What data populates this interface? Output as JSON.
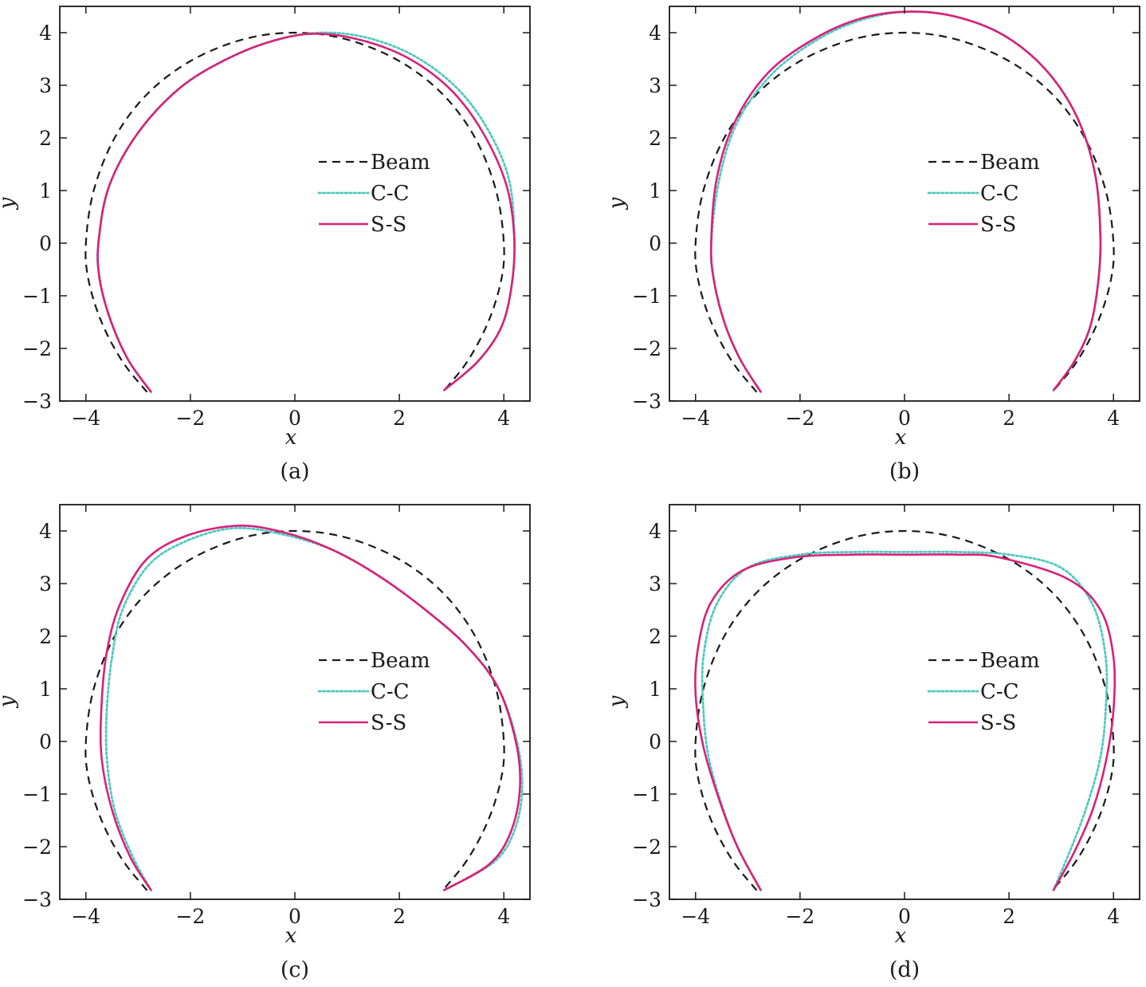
{
  "chart_data": [
    {
      "type": "line",
      "caption": "(a)",
      "xlabel": "x",
      "ylabel": "y",
      "xlim": [
        -4.5,
        4.5
      ],
      "ylim": [
        -3,
        4.5
      ],
      "xticks": [
        -4,
        -2,
        0,
        2,
        4
      ],
      "yticks": [
        -3,
        -2,
        -1,
        0,
        1,
        2,
        3,
        4
      ],
      "legend_position": "center-right",
      "series": [
        {
          "name": "Beam",
          "style": "dashed",
          "color": "#1a1a1a",
          "x": [
            -2.83,
            -3.3,
            -3.7,
            -3.95,
            -4.0,
            -3.85,
            -3.45,
            -2.83,
            -2.0,
            -1.0,
            0.0,
            1.0,
            2.0,
            2.83,
            3.45,
            3.85,
            4.0,
            3.95,
            3.7,
            3.3,
            2.83
          ],
          "y": [
            -2.83,
            -2.25,
            -1.5,
            -0.7,
            0.0,
            1.0,
            2.0,
            2.83,
            3.46,
            3.87,
            4.0,
            3.87,
            3.46,
            2.83,
            2.0,
            1.0,
            0.0,
            -0.7,
            -1.5,
            -2.25,
            -2.83
          ]
        },
        {
          "name": "C-C",
          "style": "dotted",
          "color": "#4ec9c0",
          "x": [
            -2.75,
            -3.2,
            -3.55,
            -3.75,
            -3.75,
            -3.55,
            -3.0,
            -2.2,
            -1.3,
            -0.4,
            0.5,
            1.4,
            2.3,
            3.1,
            3.7,
            4.1,
            4.2,
            4.15,
            3.95,
            3.5,
            2.85
          ],
          "y": [
            -2.83,
            -2.2,
            -1.4,
            -0.6,
            0.1,
            1.1,
            2.1,
            2.95,
            3.5,
            3.85,
            4.0,
            3.9,
            3.55,
            2.95,
            2.15,
            1.2,
            0.1,
            -0.8,
            -1.6,
            -2.25,
            -2.8
          ]
        },
        {
          "name": "S-S",
          "style": "solid",
          "color": "#d9207a",
          "x": [
            -2.75,
            -3.2,
            -3.55,
            -3.75,
            -3.75,
            -3.55,
            -3.0,
            -2.2,
            -1.3,
            -0.4,
            0.4,
            1.3,
            2.2,
            3.0,
            3.6,
            4.05,
            4.2,
            4.15,
            3.95,
            3.5,
            2.85
          ],
          "y": [
            -2.83,
            -2.2,
            -1.4,
            -0.6,
            0.1,
            1.1,
            2.1,
            2.95,
            3.5,
            3.85,
            3.98,
            3.85,
            3.5,
            2.9,
            2.1,
            1.1,
            0.1,
            -0.8,
            -1.6,
            -2.25,
            -2.8
          ]
        }
      ]
    },
    {
      "type": "line",
      "caption": "(b)",
      "xlabel": "x",
      "ylabel": "y",
      "xlim": [
        -4.5,
        4.5
      ],
      "ylim": [
        -3,
        4.5
      ],
      "xticks": [
        -4,
        -2,
        0,
        2,
        4
      ],
      "yticks": [
        -3,
        -2,
        -1,
        0,
        1,
        2,
        3,
        4
      ],
      "legend_position": "center-right",
      "series": [
        {
          "name": "Beam",
          "style": "dashed",
          "color": "#1a1a1a",
          "x": [
            -2.83,
            -3.3,
            -3.7,
            -3.95,
            -4.0,
            -3.85,
            -3.45,
            -2.83,
            -2.0,
            -1.0,
            0.0,
            1.0,
            2.0,
            2.83,
            3.45,
            3.85,
            4.0,
            3.95,
            3.7,
            3.3,
            2.83
          ],
          "y": [
            -2.83,
            -2.25,
            -1.5,
            -0.7,
            0.0,
            1.0,
            2.0,
            2.83,
            3.46,
            3.87,
            4.0,
            3.87,
            3.46,
            2.83,
            2.0,
            1.0,
            0.0,
            -0.7,
            -1.5,
            -2.25,
            -2.83
          ]
        },
        {
          "name": "C-C",
          "style": "dotted",
          "color": "#4ec9c0",
          "x": [
            -2.75,
            -3.15,
            -3.45,
            -3.65,
            -3.7,
            -3.55,
            -3.2,
            -2.55,
            -1.7,
            -0.8,
            0.1,
            1.0,
            1.9,
            2.7,
            3.3,
            3.65,
            3.75,
            3.7,
            3.55,
            3.25,
            2.85
          ],
          "y": [
            -2.83,
            -2.2,
            -1.5,
            -0.7,
            0.0,
            1.2,
            2.3,
            3.2,
            3.85,
            4.25,
            4.4,
            4.3,
            3.95,
            3.3,
            2.4,
            1.3,
            0.1,
            -0.8,
            -1.6,
            -2.25,
            -2.8
          ]
        },
        {
          "name": "S-S",
          "style": "solid",
          "color": "#d9207a",
          "x": [
            -2.75,
            -3.15,
            -3.45,
            -3.65,
            -3.7,
            -3.6,
            -3.25,
            -2.6,
            -1.7,
            -0.8,
            0.1,
            1.0,
            1.9,
            2.7,
            3.3,
            3.65,
            3.75,
            3.7,
            3.55,
            3.25,
            2.85
          ],
          "y": [
            -2.83,
            -2.2,
            -1.5,
            -0.7,
            0.0,
            1.2,
            2.3,
            3.25,
            3.9,
            4.28,
            4.4,
            4.3,
            3.95,
            3.3,
            2.4,
            1.3,
            0.1,
            -0.8,
            -1.6,
            -2.25,
            -2.8
          ]
        }
      ]
    },
    {
      "type": "line",
      "caption": "(c)",
      "xlabel": "x",
      "ylabel": "y",
      "xlim": [
        -4.5,
        4.5
      ],
      "ylim": [
        -3,
        4.5
      ],
      "xticks": [
        -4,
        -2,
        0,
        2,
        4
      ],
      "yticks": [
        -3,
        -2,
        -1,
        0,
        1,
        2,
        3,
        4
      ],
      "legend_position": "center-right",
      "series": [
        {
          "name": "Beam",
          "style": "dashed",
          "color": "#1a1a1a",
          "x": [
            -2.83,
            -3.3,
            -3.7,
            -3.95,
            -4.0,
            -3.85,
            -3.45,
            -2.83,
            -2.0,
            -1.0,
            0.0,
            1.0,
            2.0,
            2.83,
            3.45,
            3.85,
            4.0,
            3.95,
            3.7,
            3.3,
            2.83
          ],
          "y": [
            -2.83,
            -2.25,
            -1.5,
            -0.7,
            0.0,
            1.0,
            2.0,
            2.83,
            3.46,
            3.87,
            4.0,
            3.87,
            3.46,
            2.83,
            2.0,
            1.0,
            0.0,
            -0.7,
            -1.5,
            -2.25,
            -2.83
          ]
        },
        {
          "name": "C-C",
          "style": "dotted",
          "color": "#4ec9c0",
          "x": [
            -2.75,
            -3.1,
            -3.45,
            -3.6,
            -3.6,
            -3.5,
            -3.3,
            -2.8,
            -2.1,
            -1.2,
            -0.3,
            0.7,
            1.6,
            2.5,
            3.3,
            3.9,
            4.25,
            4.35,
            4.2,
            3.8,
            2.85
          ],
          "y": [
            -2.83,
            -2.2,
            -1.3,
            -0.3,
            0.6,
            1.6,
            2.5,
            3.35,
            3.8,
            4.05,
            3.95,
            3.65,
            3.15,
            2.5,
            1.8,
            1.0,
            0.0,
            -0.9,
            -1.7,
            -2.3,
            -2.83
          ]
        },
        {
          "name": "S-S",
          "style": "solid",
          "color": "#d9207a",
          "x": [
            -2.75,
            -3.15,
            -3.5,
            -3.7,
            -3.7,
            -3.6,
            -3.35,
            -2.85,
            -2.1,
            -1.1,
            -0.2,
            0.7,
            1.6,
            2.5,
            3.3,
            3.9,
            4.25,
            4.3,
            4.1,
            3.7,
            2.85
          ],
          "y": [
            -2.83,
            -2.2,
            -1.3,
            -0.3,
            0.7,
            1.7,
            2.6,
            3.45,
            3.9,
            4.1,
            3.97,
            3.65,
            3.15,
            2.5,
            1.8,
            1.0,
            -0.1,
            -1.0,
            -1.8,
            -2.35,
            -2.83
          ]
        }
      ]
    },
    {
      "type": "line",
      "caption": "(d)",
      "xlabel": "x",
      "ylabel": "y",
      "xlim": [
        -4.5,
        4.5
      ],
      "ylim": [
        -3,
        4.5
      ],
      "xticks": [
        -4,
        -2,
        0,
        2,
        4
      ],
      "yticks": [
        -3,
        -2,
        -1,
        0,
        1,
        2,
        3,
        4
      ],
      "legend_position": "center-right",
      "series": [
        {
          "name": "Beam",
          "style": "dashed",
          "color": "#1a1a1a",
          "x": [
            -2.83,
            -3.3,
            -3.7,
            -3.95,
            -4.0,
            -3.85,
            -3.45,
            -2.83,
            -2.0,
            -1.0,
            0.0,
            1.0,
            2.0,
            2.83,
            3.45,
            3.85,
            4.0,
            3.95,
            3.7,
            3.3,
            2.83
          ],
          "y": [
            -2.83,
            -2.25,
            -1.5,
            -0.7,
            0.0,
            1.0,
            2.0,
            2.83,
            3.46,
            3.87,
            4.0,
            3.87,
            3.46,
            2.83,
            2.0,
            1.0,
            0.0,
            -0.7,
            -1.5,
            -2.25,
            -2.83
          ]
        },
        {
          "name": "C-C",
          "style": "dotted",
          "color": "#4ec9c0",
          "x": [
            -2.75,
            -3.2,
            -3.5,
            -3.75,
            -3.85,
            -3.85,
            -3.6,
            -3.0,
            -2.0,
            -1.0,
            0.0,
            1.0,
            2.0,
            3.0,
            3.6,
            3.85,
            3.85,
            3.75,
            3.5,
            3.2,
            2.85
          ],
          "y": [
            -2.83,
            -2.0,
            -1.2,
            -0.3,
            0.6,
            1.6,
            2.6,
            3.3,
            3.55,
            3.6,
            3.6,
            3.6,
            3.55,
            3.3,
            2.6,
            1.6,
            0.6,
            -0.3,
            -1.2,
            -2.0,
            -2.83
          ]
        },
        {
          "name": "S-S",
          "style": "solid",
          "color": "#d9207a",
          "x": [
            -2.75,
            -3.2,
            -3.55,
            -3.85,
            -4.0,
            -3.95,
            -3.7,
            -3.1,
            -2.1,
            -1.0,
            0.0,
            1.0,
            1.8,
            3.1,
            3.75,
            4.0,
            4.0,
            3.85,
            3.6,
            3.25,
            2.85
          ],
          "y": [
            -2.83,
            -2.0,
            -1.1,
            -0.1,
            0.9,
            1.8,
            2.65,
            3.25,
            3.5,
            3.55,
            3.55,
            3.55,
            3.5,
            3.1,
            2.5,
            1.6,
            0.6,
            -0.4,
            -1.3,
            -2.1,
            -2.83
          ]
        }
      ]
    }
  ]
}
